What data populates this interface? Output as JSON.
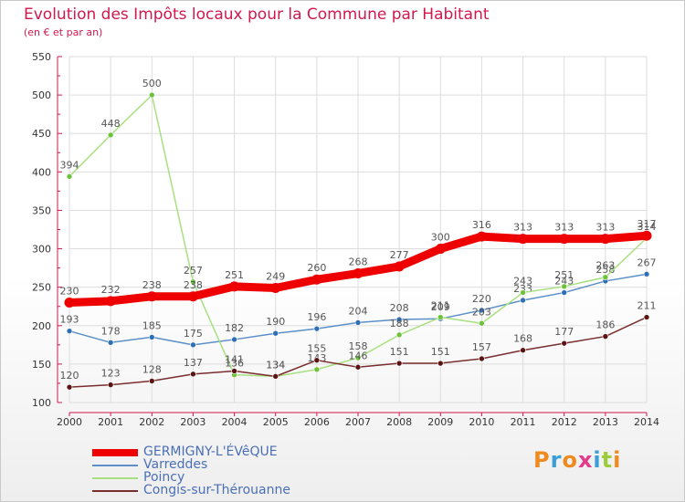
{
  "title": "Evolution des Impôts locaux pour la Commune par Habitant",
  "subtitle": "(en € et par an)",
  "logo_text": "Proxiti",
  "colors": {
    "title": "#d1184d",
    "axis": "#d1184d",
    "grid": "#dddddd",
    "label": "#555555",
    "legend_text": "#4a6fb5"
  },
  "chart_data": {
    "type": "line",
    "x": [
      "2000",
      "2001",
      "2002",
      "2003",
      "2004",
      "2005",
      "2006",
      "2007",
      "2008",
      "2009",
      "2010",
      "2011",
      "2012",
      "2013",
      "2014"
    ],
    "ylim": [
      100,
      550
    ],
    "yticks": [
      100,
      150,
      200,
      250,
      300,
      350,
      400,
      450,
      500,
      550
    ],
    "grid": true,
    "legend_position": "bottom-left",
    "series": [
      {
        "name": "Varreddes",
        "color": "#5b8fc8",
        "point_color": "#2f6fb5",
        "width": 1.5,
        "values": [
          193,
          178,
          185,
          175,
          182,
          190,
          196,
          204,
          208,
          209,
          220,
          233,
          243,
          258,
          267
        ]
      },
      {
        "name": "Poincy",
        "color": "#a8e080",
        "point_color": "#6cc33a",
        "width": 1.5,
        "values": [
          394,
          448,
          500,
          257,
          136,
          134,
          143,
          158,
          188,
          211,
          203,
          243,
          251,
          263,
          314
        ]
      },
      {
        "name": "Congis-sur-Thérouanne",
        "color": "#7a2d2d",
        "point_color": "#5a1414",
        "width": 1.5,
        "values": [
          120,
          123,
          128,
          137,
          141,
          134,
          155,
          146,
          151,
          151,
          157,
          168,
          177,
          186,
          211
        ]
      },
      {
        "name": "GERMIGNY-L'ÉVêQUE",
        "color": "#ee0000",
        "point_color": "#ee0000",
        "width": 9,
        "values": [
          230,
          232,
          238,
          238,
          251,
          249,
          260,
          268,
          277,
          300,
          316,
          313,
          313,
          313,
          317
        ]
      }
    ],
    "legend_order": [
      "GERMIGNY-L'ÉVêQUE",
      "Varreddes",
      "Poincy",
      "Congis-sur-Thérouanne"
    ]
  }
}
